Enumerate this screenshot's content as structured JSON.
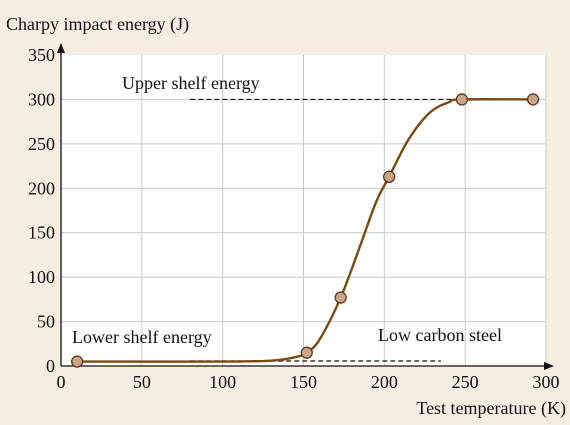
{
  "colors": {
    "background": "#f6eee3",
    "plot_background": "#ffffff",
    "grid": "#c9c9c9",
    "axis": "#111111",
    "curve": "#7a4a12",
    "marker_fill": "#c9a58a",
    "marker_stroke": "#5a3a1a"
  },
  "chart_data": {
    "type": "line",
    "ylabel": "Charpy impact energy (J)",
    "xlabel": "Test temperature (K)",
    "xlim": [
      0,
      300
    ],
    "ylim": [
      0,
      350
    ],
    "xticks": [
      "0",
      "50",
      "100",
      "150",
      "200",
      "250",
      "300"
    ],
    "yticks": [
      "0",
      "50",
      "100",
      "150",
      "200",
      "250",
      "300",
      "350"
    ],
    "grid": true,
    "series": [
      {
        "name": "Low carbon steel",
        "x": [
          10,
          152,
          173,
          203,
          248,
          292
        ],
        "y": [
          5,
          15,
          77,
          213,
          300,
          300
        ],
        "curve": [
          [
            10,
            5
          ],
          [
            100,
            5
          ],
          [
            130,
            6
          ],
          [
            145,
            10
          ],
          [
            152,
            15
          ],
          [
            160,
            30
          ],
          [
            173,
            77
          ],
          [
            185,
            135
          ],
          [
            195,
            185
          ],
          [
            203,
            213
          ],
          [
            215,
            255
          ],
          [
            228,
            285
          ],
          [
            240,
            297
          ],
          [
            248,
            300
          ],
          [
            292,
            300
          ]
        ]
      }
    ],
    "annotations": [
      {
        "text": "Upper shelf energy",
        "y": 300,
        "line_x": [
          80,
          248
        ]
      },
      {
        "text": "Lower shelf energy",
        "y": 0,
        "line_x": [
          80,
          235
        ]
      },
      {
        "text": "Low carbon steel"
      }
    ]
  }
}
